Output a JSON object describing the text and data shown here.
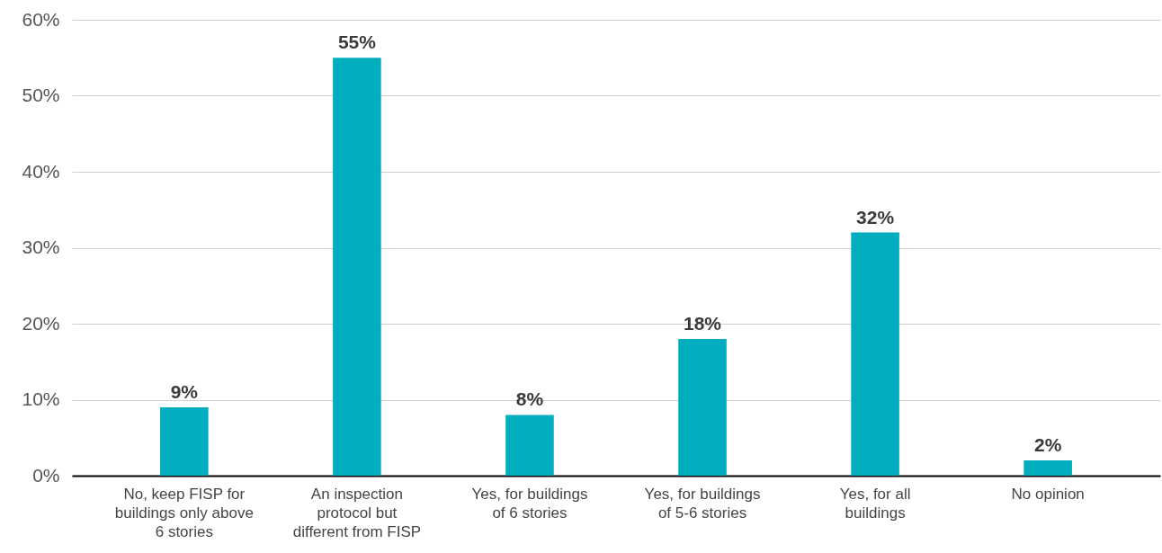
{
  "chart_data": {
    "type": "bar",
    "categories": [
      "No, keep FISP for buildings only above 6 stories",
      "An inspection protocol but different from FISP",
      "Yes, for buildings of 6 stories",
      "Yes, for buildings of 5-6 stories",
      "Yes, for all buildings",
      "No opinion"
    ],
    "values": [
      9,
      55,
      8,
      18,
      32,
      2
    ],
    "value_labels": [
      "9%",
      "55%",
      "8%",
      "18%",
      "32%",
      "2%"
    ],
    "color": "#00aec0",
    "ylim": [
      0,
      60
    ],
    "yticks": [
      {
        "value": 0,
        "label": "0%"
      },
      {
        "value": 10,
        "label": "10%"
      },
      {
        "value": 20,
        "label": "20%"
      },
      {
        "value": 30,
        "label": "30%"
      },
      {
        "value": 40,
        "label": "40%"
      },
      {
        "value": 50,
        "label": "50%"
      },
      {
        "value": 60,
        "label": "60%"
      }
    ],
    "grid": "y"
  }
}
